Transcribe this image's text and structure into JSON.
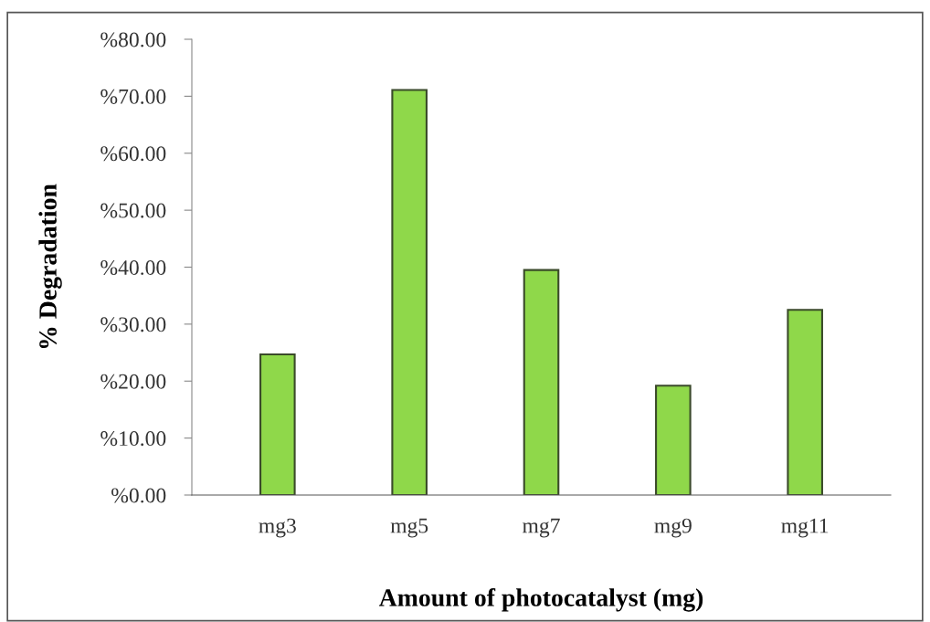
{
  "chart_data": {
    "type": "bar",
    "xlabel": "Amount of photocatalyst (mg)",
    "ylabel": "% Degradation",
    "categories": [
      "mg3",
      "mg5",
      "mg7",
      "mg9",
      "mg11"
    ],
    "values": [
      24.7,
      71.1,
      39.5,
      19.2,
      32.5
    ],
    "color": "#8fd84a",
    "ylim": [
      0,
      80
    ],
    "yticks": [
      {
        "value": 0,
        "label": "%0.00"
      },
      {
        "value": 10,
        "label": "%10.00"
      },
      {
        "value": 20,
        "label": "%20.00"
      },
      {
        "value": 30,
        "label": "%30.00"
      },
      {
        "value": 40,
        "label": "%40.00"
      },
      {
        "value": 50,
        "label": "%50.00"
      },
      {
        "value": 60,
        "label": "%60.00"
      },
      {
        "value": 70,
        "label": "%70.00"
      },
      {
        "value": 80,
        "label": "%80.00"
      }
    ],
    "grid": false,
    "legend": false
  }
}
